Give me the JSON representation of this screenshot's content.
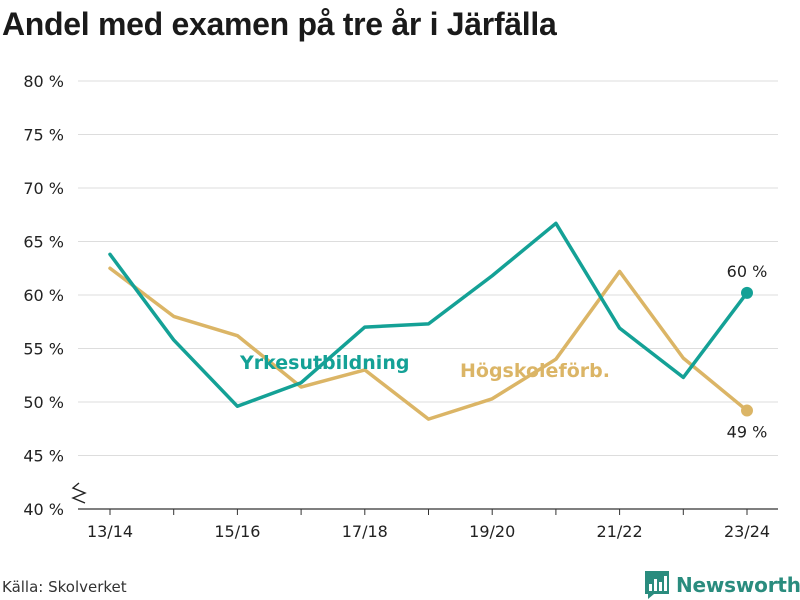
{
  "title": "Andel med examen på tre år i Järfälla",
  "source": "Källa: Skolverket",
  "brand": {
    "name": "Newsworthy",
    "color": "#2a8c7e"
  },
  "chart_data": {
    "type": "line",
    "title": "Andel med examen på tre år i Järfälla",
    "x": [
      "13/14",
      "14/15",
      "15/16",
      "16/17",
      "17/18",
      "18/19",
      "19/20",
      "20/21",
      "21/22",
      "22/23",
      "23/24"
    ],
    "x_tick_labels": [
      "13/14",
      "15/16",
      "17/18",
      "19/20",
      "21/22",
      "23/24"
    ],
    "y_tick_labels": [
      "40 %",
      "45 %",
      "50 %",
      "55 %",
      "60 %",
      "65 %",
      "70 %",
      "75 %",
      "80 %"
    ],
    "ylim": [
      40,
      80
    ],
    "y_ticks": [
      40,
      45,
      50,
      55,
      60,
      65,
      70,
      75,
      80
    ],
    "y_axis_break": true,
    "grid": true,
    "series": [
      {
        "name": "Yrkesutbildning",
        "color": "#14a196",
        "values": [
          63.8,
          55.8,
          49.6,
          51.8,
          57.0,
          57.3,
          61.8,
          66.7,
          56.9,
          52.3,
          60.2
        ],
        "end_label": "60 %"
      },
      {
        "name": "Högskoleförb.",
        "color": "#dbb566",
        "values": [
          62.5,
          58.0,
          56.2,
          51.4,
          53.0,
          48.4,
          50.3,
          54.0,
          62.2,
          54.1,
          49.2
        ],
        "end_label": "49 %"
      }
    ]
  }
}
